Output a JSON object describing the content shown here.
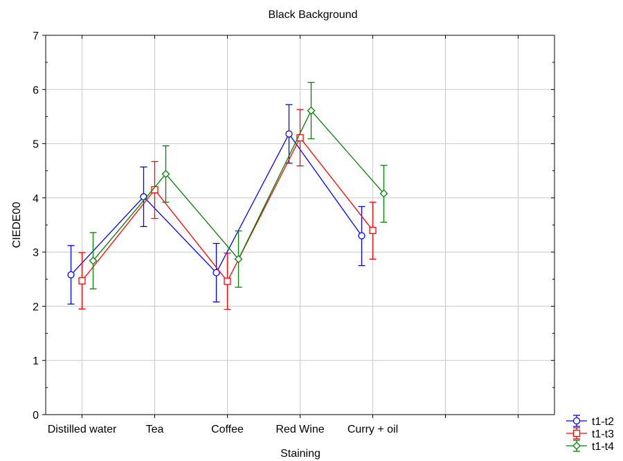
{
  "chart_data": {
    "type": "line",
    "title": "Black Background",
    "xlabel": "Staining",
    "ylabel": "CIEDE00",
    "categories": [
      "Distilled water",
      "Tea",
      "Coffee",
      "Red Wine",
      "Curry + oil"
    ],
    "extra_empty_categories": 2,
    "ylim": [
      0,
      7
    ],
    "yticks": [
      0,
      1,
      2,
      3,
      4,
      5,
      6,
      7
    ],
    "grid": true,
    "legend_position": "bottom-right",
    "error_bars": true,
    "series": [
      {
        "name": "t1-t2",
        "color": "#0000ff",
        "marker": "circle",
        "values": [
          2.58,
          4.02,
          2.62,
          5.18,
          3.3
        ],
        "lower": [
          2.04,
          3.47,
          2.08,
          4.64,
          2.75
        ],
        "upper": [
          3.12,
          4.57,
          3.16,
          5.72,
          3.84
        ]
      },
      {
        "name": "t1-t3",
        "color": "#ff0000",
        "marker": "square",
        "values": [
          2.47,
          4.15,
          2.46,
          5.11,
          3.4
        ],
        "lower": [
          1.95,
          3.62,
          1.94,
          4.59,
          2.87
        ],
        "upper": [
          2.99,
          4.67,
          2.98,
          5.63,
          3.92
        ]
      },
      {
        "name": "t1-t4",
        "color": "#008000",
        "marker": "diamond",
        "values": [
          2.84,
          4.44,
          2.87,
          5.61,
          4.08
        ],
        "lower": [
          2.32,
          3.92,
          2.35,
          5.09,
          3.55
        ],
        "upper": [
          3.36,
          4.96,
          3.39,
          6.13,
          4.6
        ]
      }
    ]
  }
}
